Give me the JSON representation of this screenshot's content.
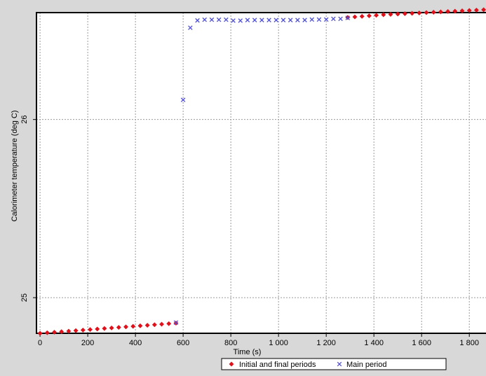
{
  "chart_data": {
    "type": "scatter",
    "xlabel": "Time (s)",
    "ylabel": "Calorimeter temperature (deg C)",
    "xlim": [
      -15,
      1870
    ],
    "ylim": [
      24.8,
      26.6
    ],
    "x_ticks": [
      0,
      200,
      400,
      600,
      800,
      1000,
      1200,
      1400,
      1600,
      1800
    ],
    "x_tick_labels": [
      "0",
      "200",
      "400",
      "600",
      "800",
      "1 000",
      "1 200",
      "1 400",
      "1 600",
      "1 800"
    ],
    "y_ticks": [
      25,
      26
    ],
    "y_tick_labels": [
      "25",
      "26"
    ],
    "grid": true,
    "legend_position": "bottom-center",
    "series": [
      {
        "name": "Initial and final periods",
        "marker": "diamond",
        "color": "#e0101a",
        "x": [
          0,
          30,
          60,
          90,
          120,
          150,
          180,
          210,
          240,
          270,
          300,
          330,
          360,
          390,
          420,
          450,
          480,
          510,
          540,
          570,
          1290,
          1320,
          1350,
          1380,
          1410,
          1440,
          1470,
          1500,
          1530,
          1560,
          1590,
          1620,
          1650,
          1680,
          1710,
          1740,
          1770,
          1800,
          1830,
          1860
        ],
        "y": [
          24.8,
          24.803,
          24.806,
          24.809,
          24.812,
          24.815,
          24.818,
          24.821,
          24.824,
          24.827,
          24.83,
          24.833,
          24.836,
          24.839,
          24.842,
          24.845,
          24.848,
          24.851,
          24.854,
          24.857,
          26.573,
          26.576,
          26.579,
          26.582,
          26.585,
          26.588,
          26.59,
          26.592,
          26.594,
          26.596,
          26.598,
          26.6,
          26.602,
          26.604,
          26.606,
          26.608,
          26.61,
          26.612,
          26.614,
          26.616
        ]
      },
      {
        "name": "Main period",
        "marker": "cross",
        "color": "#5050d8",
        "x": [
          570,
          600,
          630,
          660,
          690,
          720,
          750,
          780,
          810,
          840,
          870,
          900,
          930,
          960,
          990,
          1020,
          1050,
          1080,
          1110,
          1140,
          1170,
          1200,
          1230,
          1260,
          1290
        ],
        "y": [
          24.86,
          26.11,
          26.515,
          26.556,
          26.56,
          26.56,
          26.56,
          26.56,
          26.555,
          26.555,
          26.558,
          26.558,
          26.558,
          26.558,
          26.558,
          26.558,
          26.558,
          26.558,
          26.558,
          26.561,
          26.561,
          26.561,
          26.565,
          26.565,
          26.57
        ]
      }
    ]
  }
}
